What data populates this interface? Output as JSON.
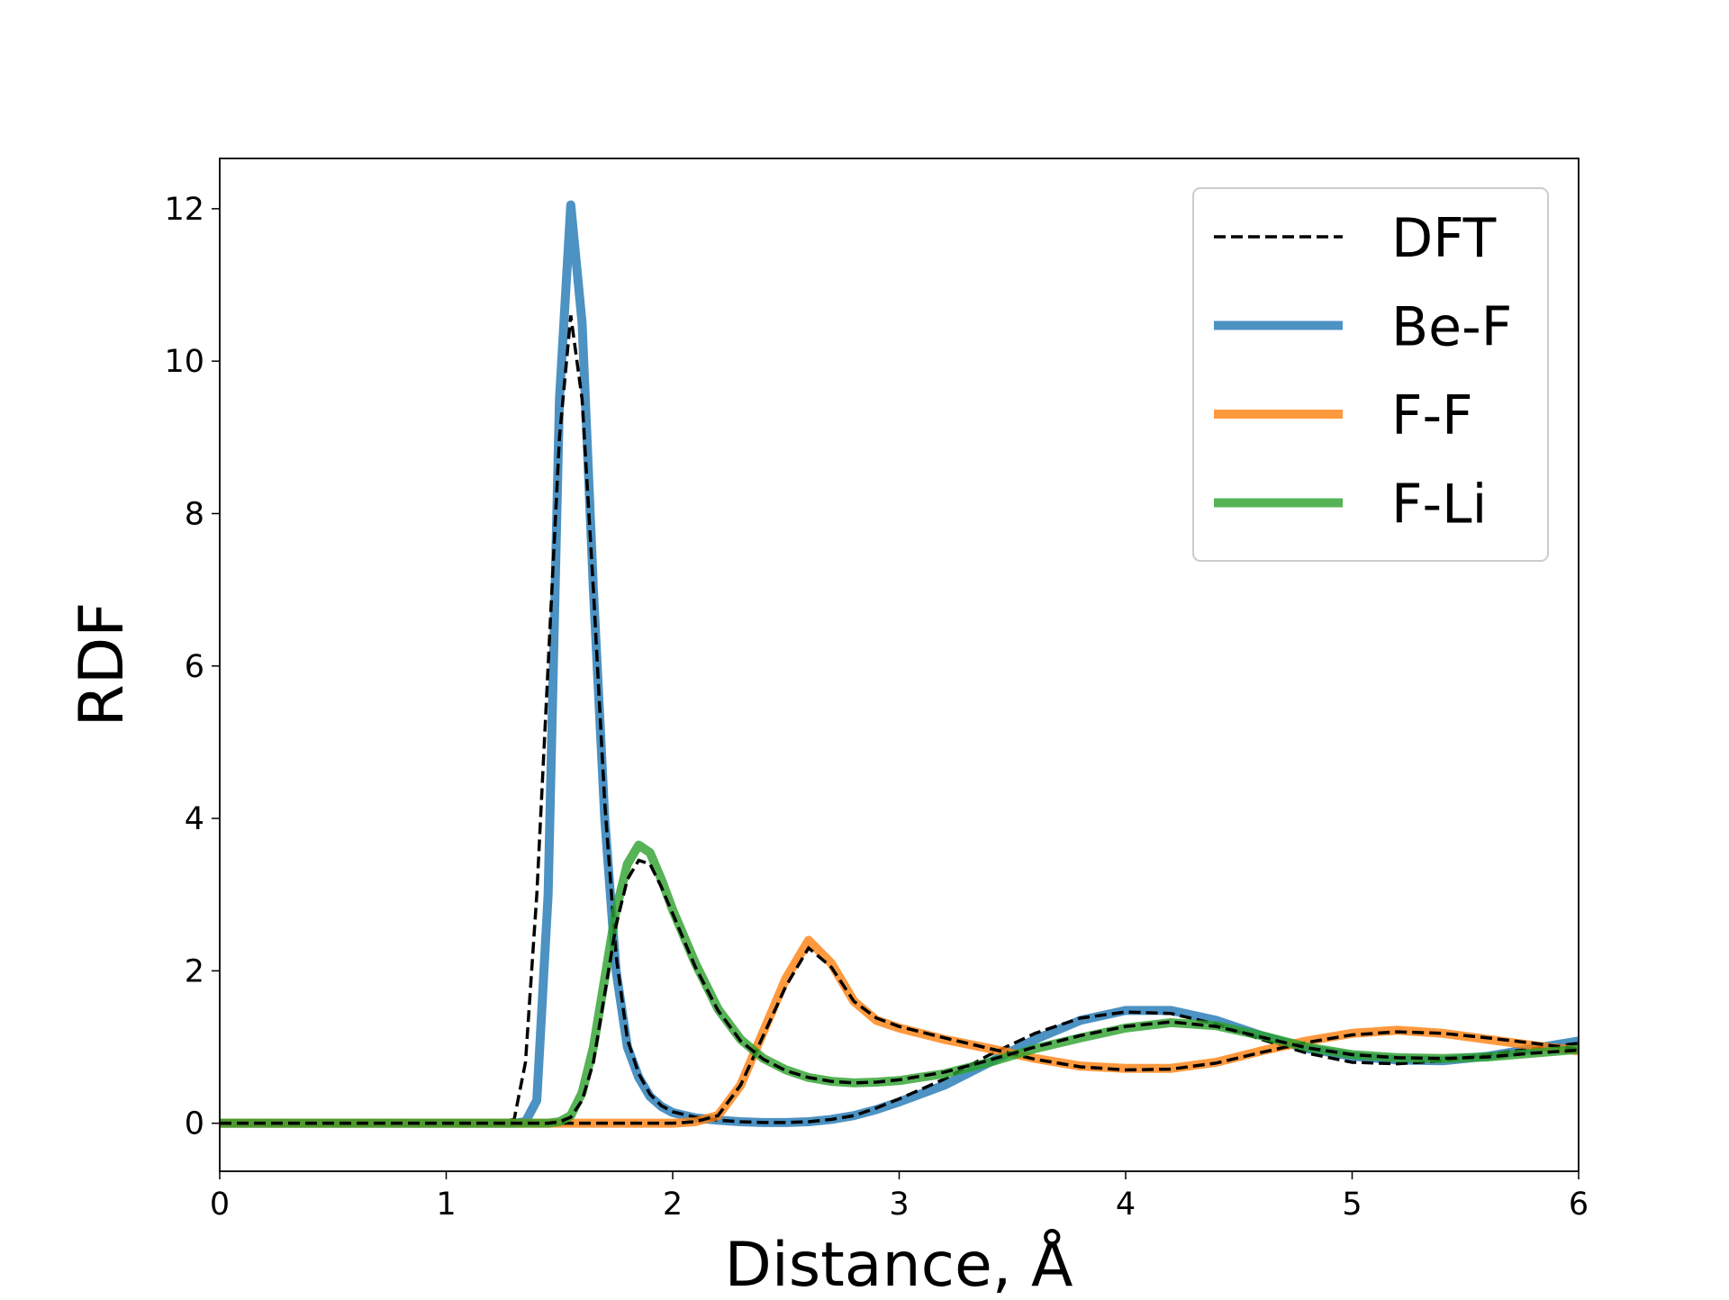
{
  "chart_data": {
    "type": "line",
    "xlabel": "Distance, Å",
    "ylabel": "RDF",
    "xlim": [
      0,
      6
    ],
    "ylim": [
      -0.63,
      12.66
    ],
    "xticks": [
      0,
      1,
      2,
      3,
      4,
      5,
      6
    ],
    "yticks": [
      0,
      2,
      4,
      6,
      8,
      10,
      12
    ],
    "grid": false,
    "legend_position": "upper right",
    "alpha": 0.8,
    "reference": {
      "name": "DFT",
      "color": "#000000",
      "style": "dashed"
    },
    "x": [
      0,
      0.5,
      1.0,
      1.2,
      1.3,
      1.35,
      1.4,
      1.45,
      1.5,
      1.55,
      1.6,
      1.65,
      1.7,
      1.75,
      1.8,
      1.85,
      1.9,
      1.95,
      2.0,
      2.1,
      2.2,
      2.3,
      2.4,
      2.5,
      2.6,
      2.7,
      2.8,
      2.9,
      3.0,
      3.2,
      3.4,
      3.6,
      3.8,
      4.0,
      4.2,
      4.4,
      4.6,
      4.8,
      5.0,
      5.2,
      5.4,
      5.6,
      5.8,
      6.0
    ],
    "series": [
      {
        "name": "Be-F",
        "color": "#1f77b4",
        "values": [
          0,
          0,
          0,
          0,
          0,
          0.02,
          0.3,
          3.0,
          9.5,
          12.05,
          10.5,
          7.0,
          4.0,
          2.0,
          1.0,
          0.6,
          0.35,
          0.22,
          0.14,
          0.07,
          0.04,
          0.02,
          0.01,
          0.01,
          0.02,
          0.05,
          0.1,
          0.18,
          0.28,
          0.5,
          0.8,
          1.1,
          1.35,
          1.48,
          1.48,
          1.35,
          1.15,
          0.98,
          0.88,
          0.83,
          0.82,
          0.88,
          0.98,
          1.08
        ],
        "dft_values": [
          0,
          0,
          0,
          0,
          0.05,
          0.8,
          3.0,
          6.0,
          9.0,
          10.6,
          9.5,
          7.0,
          4.2,
          2.2,
          1.1,
          0.65,
          0.38,
          0.23,
          0.15,
          0.08,
          0.04,
          0.02,
          0.01,
          0.01,
          0.02,
          0.05,
          0.1,
          0.2,
          0.32,
          0.58,
          0.9,
          1.18,
          1.38,
          1.46,
          1.44,
          1.3,
          1.1,
          0.92,
          0.8,
          0.78,
          0.82,
          0.9,
          0.98,
          1.05
        ]
      },
      {
        "name": "F-F",
        "color": "#ff7f0e",
        "values": [
          0,
          0,
          0,
          0,
          0,
          0,
          0,
          0,
          0,
          0,
          0,
          0,
          0,
          0,
          0,
          0,
          0,
          0,
          0,
          0.02,
          0.1,
          0.5,
          1.2,
          1.9,
          2.4,
          2.1,
          1.6,
          1.35,
          1.25,
          1.1,
          0.98,
          0.85,
          0.75,
          0.72,
          0.72,
          0.8,
          0.95,
          1.08,
          1.18,
          1.22,
          1.18,
          1.1,
          1.02,
          0.95
        ],
        "dft_values": [
          0,
          0,
          0,
          0,
          0,
          0,
          0,
          0,
          0,
          0,
          0,
          0,
          0,
          0,
          0,
          0,
          0,
          0,
          0,
          0.02,
          0.1,
          0.5,
          1.15,
          1.8,
          2.3,
          2.05,
          1.6,
          1.38,
          1.27,
          1.12,
          0.98,
          0.84,
          0.74,
          0.7,
          0.71,
          0.79,
          0.93,
          1.06,
          1.16,
          1.2,
          1.18,
          1.12,
          1.05,
          0.97
        ]
      },
      {
        "name": "F-Li",
        "color": "#2ca02c",
        "values": [
          0,
          0,
          0,
          0,
          0,
          0,
          0,
          0,
          0.02,
          0.1,
          0.4,
          1.0,
          1.9,
          2.8,
          3.4,
          3.65,
          3.55,
          3.2,
          2.8,
          2.1,
          1.5,
          1.1,
          0.85,
          0.7,
          0.6,
          0.55,
          0.53,
          0.54,
          0.56,
          0.65,
          0.8,
          0.98,
          1.12,
          1.25,
          1.32,
          1.28,
          1.15,
          1.0,
          0.9,
          0.86,
          0.85,
          0.87,
          0.92,
          0.97
        ],
        "dft_values": [
          0,
          0,
          0,
          0,
          0,
          0,
          0,
          0,
          0.02,
          0.08,
          0.3,
          0.8,
          1.7,
          2.6,
          3.2,
          3.45,
          3.4,
          3.1,
          2.75,
          2.05,
          1.48,
          1.08,
          0.84,
          0.69,
          0.6,
          0.55,
          0.53,
          0.54,
          0.57,
          0.67,
          0.83,
          1.0,
          1.15,
          1.27,
          1.33,
          1.27,
          1.13,
          0.99,
          0.9,
          0.86,
          0.85,
          0.87,
          0.92,
          0.96
        ]
      }
    ]
  }
}
